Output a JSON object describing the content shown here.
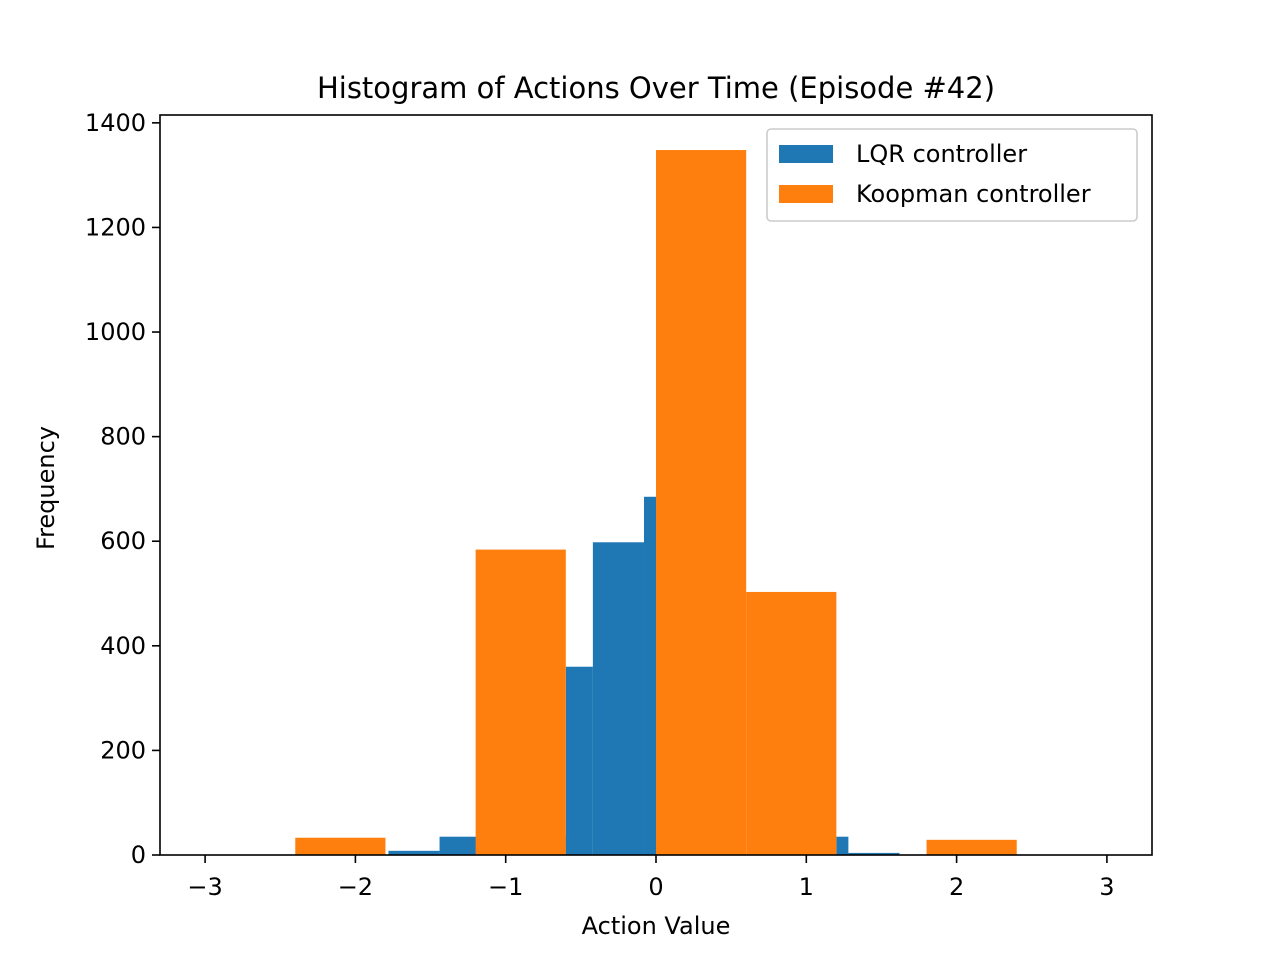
{
  "chart_data": {
    "type": "bar",
    "title": "Histogram of Actions Over Time (Episode #42)",
    "xlabel": "Action Value",
    "ylabel": "Frequency",
    "xlim": [
      -3.3,
      3.3
    ],
    "ylim": [
      0,
      1415
    ],
    "x_ticks": [
      -3,
      -2,
      -1,
      0,
      1,
      2,
      3
    ],
    "x_tick_labels": [
      "−3",
      "−2",
      "−1",
      "0",
      "1",
      "2",
      "3"
    ],
    "y_ticks": [
      0,
      200,
      400,
      600,
      800,
      1000,
      1200,
      1400
    ],
    "y_tick_labels": [
      "0",
      "200",
      "400",
      "600",
      "800",
      "1000",
      "1200",
      "1400"
    ],
    "grid": false,
    "legend_position": "top-right",
    "series": [
      {
        "name": "LQR controller",
        "color": "#1f77b4",
        "bins": [
          {
            "x0": -1.78,
            "x1": -1.44,
            "value": 8
          },
          {
            "x0": -1.44,
            "x1": -1.1,
            "value": 35
          },
          {
            "x0": -1.1,
            "x1": -0.6,
            "value": 35
          },
          {
            "x0": -0.6,
            "x1": -0.42,
            "value": 360
          },
          {
            "x0": -0.42,
            "x1": -0.08,
            "value": 598
          },
          {
            "x0": -0.08,
            "x1": 0.26,
            "value": 685
          },
          {
            "x0": 1.2,
            "x1": 1.28,
            "value": 35
          },
          {
            "x0": 1.28,
            "x1": 1.62,
            "value": 4
          }
        ]
      },
      {
        "name": "Koopman controller",
        "color": "#ff7f0e",
        "bins": [
          {
            "x0": -2.4,
            "x1": -1.8,
            "value": 33
          },
          {
            "x0": -1.2,
            "x1": -0.6,
            "value": 584
          },
          {
            "x0": 0.0,
            "x1": 0.6,
            "value": 1348
          },
          {
            "x0": 0.6,
            "x1": 1.2,
            "value": 503
          },
          {
            "x0": 1.8,
            "x1": 2.4,
            "value": 29
          }
        ]
      }
    ]
  }
}
